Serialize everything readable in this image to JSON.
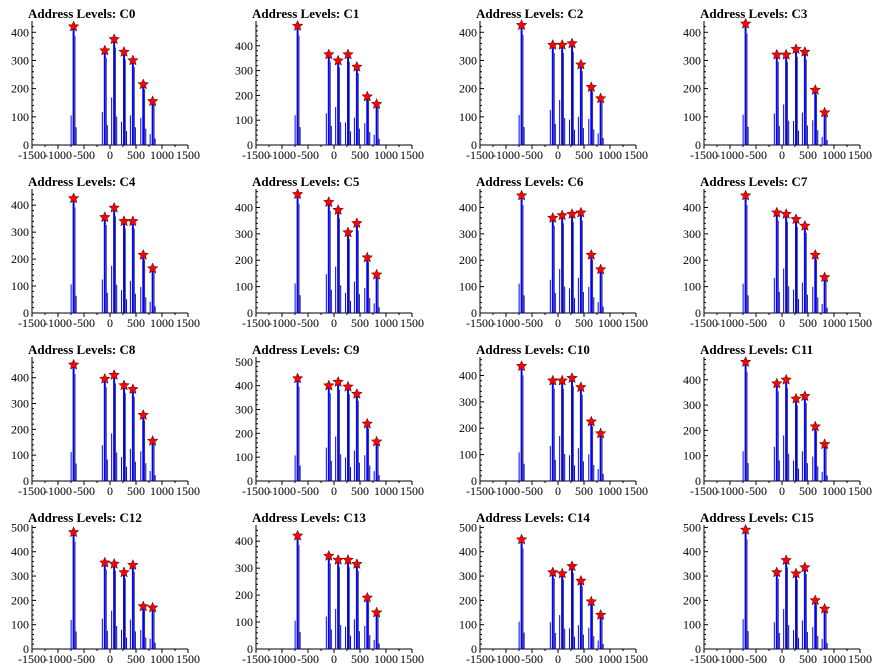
{
  "chart_data": [
    {
      "type": "bar",
      "title": "Address Levels: C0",
      "xlim": [
        -1500,
        1500
      ],
      "ylim": [
        0,
        440
      ],
      "xticks": [
        -1500,
        -1000,
        -500,
        0,
        500,
        1000,
        1500
      ],
      "yticks": [
        0,
        100,
        200,
        300,
        400
      ],
      "peaks": [
        {
          "x": -700,
          "y": 420
        },
        {
          "x": -100,
          "y": 335
        },
        {
          "x": 80,
          "y": 375
        },
        {
          "x": 270,
          "y": 330
        },
        {
          "x": 440,
          "y": 300
        },
        {
          "x": 640,
          "y": 215
        },
        {
          "x": 820,
          "y": 155
        }
      ],
      "line_color": "#0000ff",
      "marker_color": "#ff0000"
    },
    {
      "type": "bar",
      "title": "Address Levels: C1",
      "xlim": [
        -1500,
        1500
      ],
      "ylim": [
        0,
        500
      ],
      "xticks": [
        -1500,
        -1000,
        -500,
        0,
        500,
        1000,
        1500
      ],
      "yticks": [
        0,
        100,
        200,
        300,
        400
      ],
      "peaks": [
        {
          "x": -700,
          "y": 480
        },
        {
          "x": -100,
          "y": 365
        },
        {
          "x": 80,
          "y": 340
        },
        {
          "x": 270,
          "y": 365
        },
        {
          "x": 440,
          "y": 315
        },
        {
          "x": 640,
          "y": 195
        },
        {
          "x": 820,
          "y": 165
        }
      ],
      "line_color": "#0000ff",
      "marker_color": "#ff0000"
    },
    {
      "type": "bar",
      "title": "Address Levels: C2",
      "xlim": [
        -1500,
        1500
      ],
      "ylim": [
        0,
        440
      ],
      "xticks": [
        -1500,
        -1000,
        -500,
        0,
        500,
        1000,
        1500
      ],
      "yticks": [
        0,
        100,
        200,
        300,
        400
      ],
      "peaks": [
        {
          "x": -700,
          "y": 425
        },
        {
          "x": -100,
          "y": 355
        },
        {
          "x": 80,
          "y": 355
        },
        {
          "x": 270,
          "y": 360
        },
        {
          "x": 440,
          "y": 285
        },
        {
          "x": 640,
          "y": 205
        },
        {
          "x": 820,
          "y": 165
        }
      ],
      "line_color": "#0000ff",
      "marker_color": "#ff0000"
    },
    {
      "type": "bar",
      "title": "Address Levels: C3",
      "xlim": [
        -1500,
        1500
      ],
      "ylim": [
        0,
        440
      ],
      "xticks": [
        -1500,
        -1000,
        -500,
        0,
        500,
        1000,
        1500
      ],
      "yticks": [
        0,
        100,
        200,
        300,
        400
      ],
      "peaks": [
        {
          "x": -700,
          "y": 430
        },
        {
          "x": -100,
          "y": 320
        },
        {
          "x": 80,
          "y": 320
        },
        {
          "x": 270,
          "y": 340
        },
        {
          "x": 440,
          "y": 330
        },
        {
          "x": 640,
          "y": 195
        },
        {
          "x": 820,
          "y": 115
        }
      ],
      "line_color": "#0000ff",
      "marker_color": "#ff0000"
    },
    {
      "type": "bar",
      "title": "Address Levels: C4",
      "xlim": [
        -1500,
        1500
      ],
      "ylim": [
        0,
        460
      ],
      "xticks": [
        -1500,
        -1000,
        -500,
        0,
        500,
        1000,
        1500
      ],
      "yticks": [
        0,
        100,
        200,
        300,
        400
      ],
      "peaks": [
        {
          "x": -700,
          "y": 425
        },
        {
          "x": -100,
          "y": 355
        },
        {
          "x": 80,
          "y": 390
        },
        {
          "x": 270,
          "y": 340
        },
        {
          "x": 440,
          "y": 340
        },
        {
          "x": 640,
          "y": 215
        },
        {
          "x": 820,
          "y": 165
        }
      ],
      "line_color": "#0000ff",
      "marker_color": "#ff0000"
    },
    {
      "type": "bar",
      "title": "Address Levels: C5",
      "xlim": [
        -1500,
        1500
      ],
      "ylim": [
        0,
        470
      ],
      "xticks": [
        -1500,
        -1000,
        -500,
        0,
        500,
        1000,
        1500
      ],
      "yticks": [
        0,
        100,
        200,
        300,
        400
      ],
      "peaks": [
        {
          "x": -700,
          "y": 450
        },
        {
          "x": -100,
          "y": 420
        },
        {
          "x": 80,
          "y": 390
        },
        {
          "x": 270,
          "y": 305
        },
        {
          "x": 440,
          "y": 340
        },
        {
          "x": 640,
          "y": 210
        },
        {
          "x": 820,
          "y": 145
        }
      ],
      "line_color": "#0000ff",
      "marker_color": "#ff0000"
    },
    {
      "type": "bar",
      "title": "Address Levels: C6",
      "xlim": [
        -1500,
        1500
      ],
      "ylim": [
        0,
        470
      ],
      "xticks": [
        -1500,
        -1000,
        -500,
        0,
        500,
        1000,
        1500
      ],
      "yticks": [
        0,
        100,
        200,
        300,
        400
      ],
      "peaks": [
        {
          "x": -700,
          "y": 445
        },
        {
          "x": -100,
          "y": 360
        },
        {
          "x": 80,
          "y": 370
        },
        {
          "x": 270,
          "y": 375
        },
        {
          "x": 440,
          "y": 380
        },
        {
          "x": 640,
          "y": 220
        },
        {
          "x": 820,
          "y": 165
        }
      ],
      "line_color": "#0000ff",
      "marker_color": "#ff0000"
    },
    {
      "type": "bar",
      "title": "Address Levels: C7",
      "xlim": [
        -1500,
        1500
      ],
      "ylim": [
        0,
        470
      ],
      "xticks": [
        -1500,
        -1000,
        -500,
        0,
        500,
        1000,
        1500
      ],
      "yticks": [
        0,
        100,
        200,
        300,
        400
      ],
      "peaks": [
        {
          "x": -700,
          "y": 445
        },
        {
          "x": -100,
          "y": 380
        },
        {
          "x": 80,
          "y": 375
        },
        {
          "x": 270,
          "y": 355
        },
        {
          "x": 440,
          "y": 330
        },
        {
          "x": 640,
          "y": 220
        },
        {
          "x": 820,
          "y": 135
        }
      ],
      "line_color": "#0000ff",
      "marker_color": "#ff0000"
    },
    {
      "type": "bar",
      "title": "Address Levels: C8",
      "xlim": [
        -1500,
        1500
      ],
      "ylim": [
        0,
        480
      ],
      "xticks": [
        -1500,
        -1000,
        -500,
        0,
        500,
        1000,
        1500
      ],
      "yticks": [
        0,
        100,
        200,
        300,
        400
      ],
      "peaks": [
        {
          "x": -700,
          "y": 450
        },
        {
          "x": -100,
          "y": 395
        },
        {
          "x": 80,
          "y": 410
        },
        {
          "x": 270,
          "y": 370
        },
        {
          "x": 440,
          "y": 355
        },
        {
          "x": 640,
          "y": 255
        },
        {
          "x": 820,
          "y": 155
        }
      ],
      "line_color": "#0000ff",
      "marker_color": "#ff0000"
    },
    {
      "type": "bar",
      "title": "Address Levels: C9",
      "xlim": [
        -1500,
        1500
      ],
      "ylim": [
        0,
        520
      ],
      "xticks": [
        -1500,
        -1000,
        -500,
        0,
        500,
        1000,
        1500
      ],
      "yticks": [
        0,
        100,
        200,
        300,
        400,
        500
      ],
      "peaks": [
        {
          "x": -700,
          "y": 430
        },
        {
          "x": -100,
          "y": 400
        },
        {
          "x": 80,
          "y": 415
        },
        {
          "x": 270,
          "y": 395
        },
        {
          "x": 440,
          "y": 365
        },
        {
          "x": 640,
          "y": 240
        },
        {
          "x": 820,
          "y": 165
        }
      ],
      "line_color": "#0000ff",
      "marker_color": "#ff0000"
    },
    {
      "type": "bar",
      "title": "Address Levels: C10",
      "xlim": [
        -1500,
        1500
      ],
      "ylim": [
        0,
        470
      ],
      "xticks": [
        -1500,
        -1000,
        -500,
        0,
        500,
        1000,
        1500
      ],
      "yticks": [
        0,
        100,
        200,
        300,
        400
      ],
      "peaks": [
        {
          "x": -700,
          "y": 435
        },
        {
          "x": -100,
          "y": 380
        },
        {
          "x": 80,
          "y": 380
        },
        {
          "x": 270,
          "y": 390
        },
        {
          "x": 440,
          "y": 355
        },
        {
          "x": 640,
          "y": 225
        },
        {
          "x": 820,
          "y": 180
        }
      ],
      "line_color": "#0000ff",
      "marker_color": "#ff0000"
    },
    {
      "type": "bar",
      "title": "Address Levels: C11",
      "xlim": [
        -1500,
        1500
      ],
      "ylim": [
        0,
        490
      ],
      "xticks": [
        -1500,
        -1000,
        -500,
        0,
        500,
        1000,
        1500
      ],
      "yticks": [
        0,
        100,
        200,
        300,
        400
      ],
      "peaks": [
        {
          "x": -700,
          "y": 470
        },
        {
          "x": -100,
          "y": 385
        },
        {
          "x": 80,
          "y": 400
        },
        {
          "x": 270,
          "y": 325
        },
        {
          "x": 440,
          "y": 335
        },
        {
          "x": 640,
          "y": 215
        },
        {
          "x": 820,
          "y": 145
        }
      ],
      "line_color": "#0000ff",
      "marker_color": "#ff0000"
    },
    {
      "type": "bar",
      "title": "Address Levels: C12",
      "xlim": [
        -1500,
        1500
      ],
      "ylim": [
        0,
        510
      ],
      "xticks": [
        -1500,
        -1000,
        -500,
        0,
        500,
        1000,
        1500
      ],
      "yticks": [
        0,
        100,
        200,
        300,
        400,
        500
      ],
      "peaks": [
        {
          "x": -700,
          "y": 480
        },
        {
          "x": -100,
          "y": 355
        },
        {
          "x": 80,
          "y": 350
        },
        {
          "x": 270,
          "y": 315
        },
        {
          "x": 440,
          "y": 345
        },
        {
          "x": 640,
          "y": 175
        },
        {
          "x": 820,
          "y": 170
        }
      ],
      "line_color": "#0000ff",
      "marker_color": "#ff0000"
    },
    {
      "type": "bar",
      "title": "Address Levels: C13",
      "xlim": [
        -1500,
        1500
      ],
      "ylim": [
        0,
        460
      ],
      "xticks": [
        -1500,
        -1000,
        -500,
        0,
        500,
        1000,
        1500
      ],
      "yticks": [
        0,
        100,
        200,
        300,
        400
      ],
      "peaks": [
        {
          "x": -700,
          "y": 420
        },
        {
          "x": -100,
          "y": 345
        },
        {
          "x": 80,
          "y": 330
        },
        {
          "x": 270,
          "y": 330
        },
        {
          "x": 440,
          "y": 315
        },
        {
          "x": 640,
          "y": 190
        },
        {
          "x": 820,
          "y": 135
        }
      ],
      "line_color": "#0000ff",
      "marker_color": "#ff0000"
    },
    {
      "type": "bar",
      "title": "Address Levels: C14",
      "xlim": [
        -1500,
        1500
      ],
      "ylim": [
        0,
        510
      ],
      "xticks": [
        -1500,
        -1000,
        -500,
        0,
        500,
        1000,
        1500
      ],
      "yticks": [
        0,
        100,
        200,
        300,
        400,
        500
      ],
      "peaks": [
        {
          "x": -700,
          "y": 450
        },
        {
          "x": -100,
          "y": 315
        },
        {
          "x": 80,
          "y": 310
        },
        {
          "x": 270,
          "y": 340
        },
        {
          "x": 440,
          "y": 280
        },
        {
          "x": 640,
          "y": 195
        },
        {
          "x": 820,
          "y": 140
        }
      ],
      "line_color": "#0000ff",
      "marker_color": "#ff0000"
    },
    {
      "type": "bar",
      "title": "Address Levels: C15",
      "xlim": [
        -1500,
        1500
      ],
      "ylim": [
        0,
        510
      ],
      "xticks": [
        -1500,
        -1000,
        -500,
        0,
        500,
        1000,
        1500
      ],
      "yticks": [
        0,
        100,
        200,
        300,
        400,
        500
      ],
      "peaks": [
        {
          "x": -700,
          "y": 490
        },
        {
          "x": -100,
          "y": 315
        },
        {
          "x": 80,
          "y": 365
        },
        {
          "x": 270,
          "y": 310
        },
        {
          "x": 440,
          "y": 335
        },
        {
          "x": 640,
          "y": 200
        },
        {
          "x": 820,
          "y": 165
        }
      ],
      "line_color": "#0000ff",
      "marker_color": "#ff0000"
    }
  ]
}
